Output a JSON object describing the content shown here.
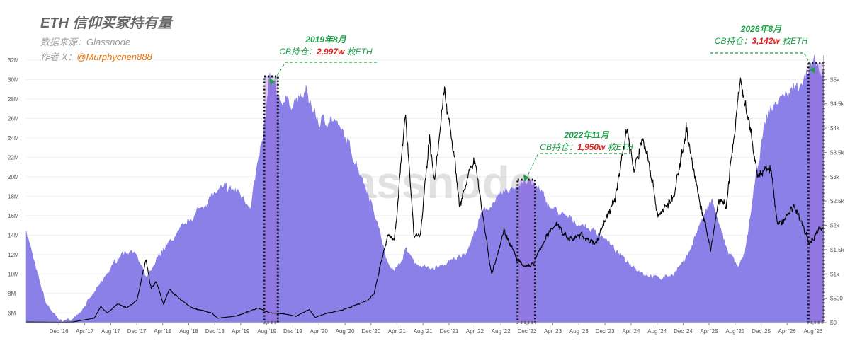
{
  "header": {
    "title": "ETH 信仰买家持有量",
    "source": "数据来源：Glassnode",
    "author_prefix": "作者 X：",
    "author_handle": "@Murphychen888"
  },
  "watermark": "glassnode",
  "annotations": [
    {
      "date": "2019年8月",
      "label": "CB持仓：",
      "value": "2,997w",
      "unit": "枚ETH"
    },
    {
      "date": "2022年11月",
      "label": "CB持仓：",
      "value": "1,950w",
      "unit": "枚ETH"
    },
    {
      "date": "2026年8月",
      "label": "CB持仓：",
      "value": "3,142w",
      "unit": "枚ETH"
    }
  ],
  "colors": {
    "holdings_fill": "#8a80e8",
    "highlight_fill": "#9b68d8",
    "price_line": "#000000",
    "annotation_green": "#1d9e48",
    "annotation_red": "#e02020",
    "author_orange": "#e8730c"
  },
  "chart_data": {
    "type": "area",
    "x_ticks": [
      "Dec '16",
      "Apr '17",
      "Aug '17",
      "Dec '17",
      "Apr '18",
      "Aug '18",
      "Dec '18",
      "Apr '19",
      "Aug '19",
      "Dec '19",
      "Apr '20",
      "Aug '20",
      "Dec '20",
      "Apr '21",
      "Aug '21",
      "Dec '21",
      "Apr '22",
      "Aug '22",
      "Dec '22",
      "Apr '23",
      "Aug '23",
      "Dec '23",
      "Apr '24",
      "Aug '24",
      "Dec '24",
      "Apr '25",
      "Aug '25",
      "Dec '25",
      "Apr '26",
      "Aug '26"
    ],
    "y_left_ticks": [
      "6M",
      "8M",
      "10M",
      "12M",
      "14M",
      "16M",
      "18M",
      "20M",
      "22M",
      "24M",
      "26M",
      "28M",
      "30M",
      "32M"
    ],
    "y_left_range": [
      5,
      32.5
    ],
    "y_right_ticks": [
      "$0",
      "$500",
      "$1k",
      "$1.5k",
      "$2k",
      "$2.5k",
      "$3k",
      "$3.5k",
      "$4k",
      "$4.5k",
      "$5k"
    ],
    "y_right_range": [
      0,
      5500
    ],
    "series": [
      {
        "axis": "left",
        "unit": "M ETH",
        "points": [
          [
            "2016-07-01",
            14.5
          ],
          [
            "2016-08-15",
            10.5
          ],
          [
            "2016-10-01",
            7.0
          ],
          [
            "2016-12-01",
            5.2
          ],
          [
            "2017-02-01",
            5.3
          ],
          [
            "2017-03-15",
            6.2
          ],
          [
            "2017-05-15",
            8.0
          ],
          [
            "2017-07-15",
            10.0
          ],
          [
            "2017-09-15",
            12.0
          ],
          [
            "2017-11-15",
            12.5
          ],
          [
            "2017-12-15",
            11.0
          ],
          [
            "2018-01-15",
            9.5
          ],
          [
            "2018-02-15",
            10.5
          ],
          [
            "2018-03-15",
            12.0
          ],
          [
            "2018-05-15",
            13.5
          ],
          [
            "2018-07-15",
            15.0
          ],
          [
            "2018-09-15",
            16.5
          ],
          [
            "2018-11-15",
            18.0
          ],
          [
            "2019-01-15",
            18.8
          ],
          [
            "2019-03-15",
            18.5
          ],
          [
            "2019-05-15",
            17.0
          ],
          [
            "2019-07-15",
            24.0
          ],
          [
            "2019-08-15",
            29.97
          ],
          [
            "2019-10-01",
            28.0
          ],
          [
            "2019-12-01",
            27.5
          ],
          [
            "2020-02-01",
            28.5
          ],
          [
            "2020-04-01",
            25.5
          ],
          [
            "2020-06-01",
            26.0
          ],
          [
            "2020-08-01",
            24.0
          ],
          [
            "2020-10-01",
            21.0
          ],
          [
            "2020-12-01",
            17.5
          ],
          [
            "2021-01-15",
            14.0
          ],
          [
            "2021-02-15",
            11.0
          ],
          [
            "2021-04-01",
            10.5
          ],
          [
            "2021-05-15",
            12.5
          ],
          [
            "2021-07-01",
            11.0
          ],
          [
            "2021-09-01",
            10.5
          ],
          [
            "2021-11-01",
            10.8
          ],
          [
            "2022-01-01",
            11.5
          ],
          [
            "2022-03-01",
            12.5
          ],
          [
            "2022-05-01",
            16.0
          ],
          [
            "2022-07-01",
            17.5
          ],
          [
            "2022-09-01",
            18.5
          ],
          [
            "2022-11-15",
            19.5
          ],
          [
            "2023-01-15",
            19.0
          ],
          [
            "2023-03-15",
            17.0
          ],
          [
            "2023-05-15",
            16.0
          ],
          [
            "2023-08-15",
            15.0
          ],
          [
            "2023-11-15",
            14.0
          ],
          [
            "2024-02-01",
            12.0
          ],
          [
            "2024-04-01",
            11.0
          ],
          [
            "2024-06-01",
            10.0
          ],
          [
            "2024-08-15",
            9.5
          ],
          [
            "2024-10-15",
            10.0
          ],
          [
            "2024-12-15",
            11.5
          ],
          [
            "2025-02-15",
            15.0
          ],
          [
            "2025-04-15",
            17.5
          ],
          [
            "2025-06-15",
            13.0
          ],
          [
            "2025-08-15",
            10.5
          ],
          [
            "2025-09-15",
            12.0
          ],
          [
            "2025-11-01",
            19.0
          ],
          [
            "2025-12-15",
            25.0
          ],
          [
            "2026-01-15",
            27.0
          ],
          [
            "2026-03-01",
            28.0
          ],
          [
            "2026-05-01",
            29.0
          ],
          [
            "2026-07-01",
            30.5
          ],
          [
            "2026-08-15",
            31.42
          ],
          [
            "2026-09-20",
            30.0
          ]
        ]
      },
      {
        "axis": "right",
        "unit": "USD",
        "points": [
          [
            "2016-07-01",
            12
          ],
          [
            "2016-12-01",
            8
          ],
          [
            "2017-02-01",
            11
          ],
          [
            "2017-03-15",
            45
          ],
          [
            "2017-05-15",
            90
          ],
          [
            "2017-06-15",
            330
          ],
          [
            "2017-07-15",
            200
          ],
          [
            "2017-09-01",
            380
          ],
          [
            "2017-10-15",
            300
          ],
          [
            "2017-12-01",
            450
          ],
          [
            "2018-01-13",
            1300
          ],
          [
            "2018-02-06",
            700
          ],
          [
            "2018-03-01",
            850
          ],
          [
            "2018-04-05",
            380
          ],
          [
            "2018-05-01",
            700
          ],
          [
            "2018-06-15",
            500
          ],
          [
            "2018-08-15",
            300
          ],
          [
            "2018-11-15",
            200
          ],
          [
            "2018-12-15",
            90
          ],
          [
            "2019-03-15",
            140
          ],
          [
            "2019-06-20",
            300
          ],
          [
            "2019-08-15",
            200
          ],
          [
            "2019-10-15",
            185
          ],
          [
            "2019-12-15",
            130
          ],
          [
            "2020-02-15",
            270
          ],
          [
            "2020-03-15",
            110
          ],
          [
            "2020-05-15",
            200
          ],
          [
            "2020-07-15",
            250
          ],
          [
            "2020-09-15",
            350
          ],
          [
            "2020-11-15",
            450
          ],
          [
            "2020-12-15",
            600
          ],
          [
            "2021-01-20",
            1300
          ],
          [
            "2021-02-20",
            1800
          ],
          [
            "2021-03-20",
            1700
          ],
          [
            "2021-05-12",
            4300
          ],
          [
            "2021-06-20",
            1800
          ],
          [
            "2021-07-20",
            1800
          ],
          [
            "2021-09-01",
            3800
          ],
          [
            "2021-09-25",
            2900
          ],
          [
            "2021-11-10",
            4800
          ],
          [
            "2021-12-15",
            3800
          ],
          [
            "2022-01-20",
            2400
          ],
          [
            "2022-03-31",
            3400
          ],
          [
            "2022-05-15",
            2000
          ],
          [
            "2022-06-18",
            1000
          ],
          [
            "2022-08-15",
            1900
          ],
          [
            "2022-10-15",
            1300
          ],
          [
            "2022-11-15",
            1150
          ],
          [
            "2022-12-31",
            1200
          ],
          [
            "2023-02-15",
            1650
          ],
          [
            "2023-04-15",
            2050
          ],
          [
            "2023-06-15",
            1700
          ],
          [
            "2023-08-15",
            1800
          ],
          [
            "2023-10-15",
            1600
          ],
          [
            "2023-12-01",
            2100
          ],
          [
            "2024-01-15",
            2500
          ],
          [
            "2024-03-12",
            4000
          ],
          [
            "2024-04-15",
            3100
          ],
          [
            "2024-05-25",
            3800
          ],
          [
            "2024-06-20",
            3400
          ],
          [
            "2024-08-05",
            2200
          ],
          [
            "2024-09-15",
            2400
          ],
          [
            "2024-10-20",
            2600
          ],
          [
            "2024-12-15",
            4000
          ],
          [
            "2025-02-01",
            2800
          ],
          [
            "2025-04-09",
            1500
          ],
          [
            "2025-05-15",
            2500
          ],
          [
            "2025-06-20",
            2400
          ],
          [
            "2025-08-24",
            4900
          ],
          [
            "2025-10-01",
            4200
          ],
          [
            "2025-11-15",
            3000
          ],
          [
            "2025-12-15",
            3100
          ],
          [
            "2026-01-15",
            3200
          ],
          [
            "2026-02-15",
            2000
          ],
          [
            "2026-03-15",
            2100
          ],
          [
            "2026-05-01",
            2400
          ],
          [
            "2026-06-15",
            2000
          ],
          [
            "2026-07-15",
            1600
          ],
          [
            "2026-08-20",
            1900
          ],
          [
            "2026-09-20",
            1950
          ]
        ]
      }
    ]
  }
}
